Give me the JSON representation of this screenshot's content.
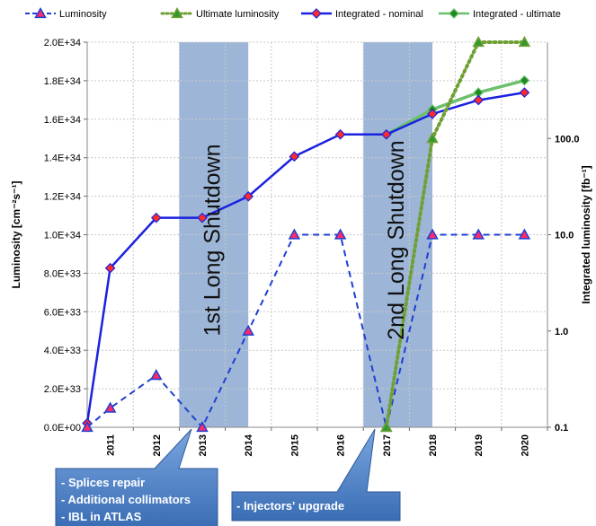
{
  "chart_data": {
    "type": "line",
    "categories": [
      "2011",
      "2012",
      "2013",
      "2014",
      "2015",
      "2016",
      "2017",
      "2018",
      "2019",
      "2020"
    ],
    "ylabel": "Luminosity [cm⁻²s⁻¹]",
    "ylabel2": "Integrated luminosity [fb⁻¹]",
    "ylim": [
      0,
      2e+34
    ],
    "y2lim": [
      0.1,
      1000
    ],
    "y2_scale": "log",
    "y_ticks": [
      "0.0E+00",
      "2.0E+33",
      "4.0E+33",
      "6.0E+33",
      "8.0E+33",
      "1.0E+34",
      "1.2E+34",
      "1.4E+34",
      "1.6E+34",
      "1.8E+34",
      "2.0E+34"
    ],
    "y2_ticks": [
      "0.1",
      "1.0",
      "10.0",
      "100.0"
    ],
    "legend_position": "top",
    "grid": true,
    "series": [
      {
        "name": "Luminosity",
        "axis": "left",
        "color": "#1f3fd0",
        "dash": "dashed",
        "marker": "triangle",
        "marker_color": "#ff2a6a",
        "points": [
          [
            "2011-01",
            0
          ],
          [
            "2011-07",
            1e+33
          ],
          [
            "2012-07",
            2.7e+33
          ],
          [
            "2013-07",
            0
          ],
          [
            "2014-07",
            5e+33
          ],
          [
            "2015-07",
            1e+34
          ],
          [
            "2016-07",
            1e+34
          ],
          [
            "2017-07",
            0
          ],
          [
            "2018-07",
            1e+34
          ],
          [
            "2019-07",
            1e+34
          ],
          [
            "2020-07",
            1e+34
          ]
        ]
      },
      {
        "name": "Ultimate luminosity",
        "axis": "left",
        "color": "#6fa034",
        "dash": "dotted",
        "marker": "triangle",
        "marker_color": "#2f9a2f",
        "points": [
          [
            "2017-07",
            0
          ],
          [
            "2018-07",
            1.5e+34
          ],
          [
            "2019-07",
            2e+34
          ],
          [
            "2020-07",
            2e+34
          ]
        ]
      },
      {
        "name": "Integrated - nominal",
        "axis": "right",
        "color": "#1a22e0",
        "dash": "solid",
        "marker": "diamond",
        "marker_color": "#ff2a2a",
        "points": [
          [
            "2011-01",
            0.11
          ],
          [
            "2011-07",
            4.5
          ],
          [
            "2012-07",
            15
          ],
          [
            "2013-07",
            15
          ],
          [
            "2014-07",
            25
          ],
          [
            "2015-07",
            65
          ],
          [
            "2016-07",
            110
          ],
          [
            "2017-07",
            110
          ],
          [
            "2018-07",
            180
          ],
          [
            "2019-07",
            250
          ],
          [
            "2020-07",
            300
          ]
        ]
      },
      {
        "name": "Integrated - ultimate",
        "axis": "right",
        "color": "#6cc06c",
        "dash": "solid",
        "marker": "diamond",
        "marker_color": "#1f8a1f",
        "points": [
          [
            "2017-07",
            110
          ],
          [
            "2018-07",
            200
          ],
          [
            "2019-07",
            300
          ],
          [
            "2020-07",
            400
          ]
        ]
      }
    ],
    "shaded_periods": [
      {
        "label": "1st Long Shutdown",
        "from": "2013-01",
        "to": "2014-07"
      },
      {
        "label": "2nd Long Shutdown",
        "from": "2017-01",
        "to": "2018-07"
      }
    ],
    "callouts": [
      {
        "lines": [
          "- Splices repair",
          "- Additional collimators",
          "- IBL in ATLAS"
        ],
        "points_to": "2013"
      },
      {
        "lines": [
          "- Injectors' upgrade"
        ],
        "points_to": "2017"
      }
    ]
  },
  "colors": {
    "shutdown_fill": "#9db6d8",
    "callout_fill": "#4a7ec4",
    "grid": "#c8c8c8"
  }
}
